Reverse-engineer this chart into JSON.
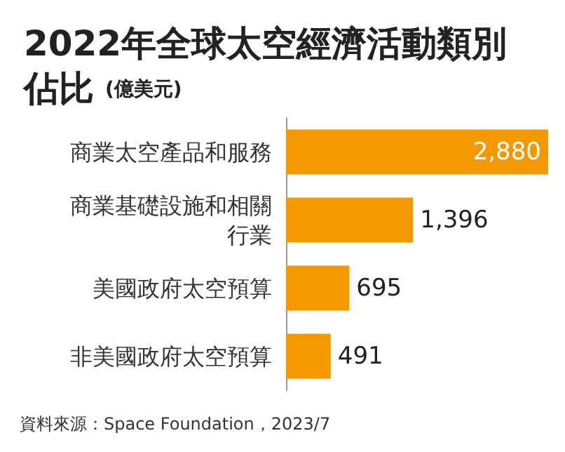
{
  "chart_data": {
    "type": "bar",
    "orientation": "horizontal",
    "title": "2022年全球太空經濟活動類別佔比",
    "subtitle": "(億美元)",
    "categories": [
      "商業太空產品和服務",
      "商業基礎設施和相關行業",
      "美國政府太空預算",
      "非美國政府太空預算"
    ],
    "values": [
      2880,
      1396,
      695,
      491
    ],
    "value_labels": [
      "2,880",
      "1,396",
      "695",
      "491"
    ],
    "color": "#f39800",
    "annotations": [
      "資料來源：Space Foundation，2023/7"
    ]
  }
}
